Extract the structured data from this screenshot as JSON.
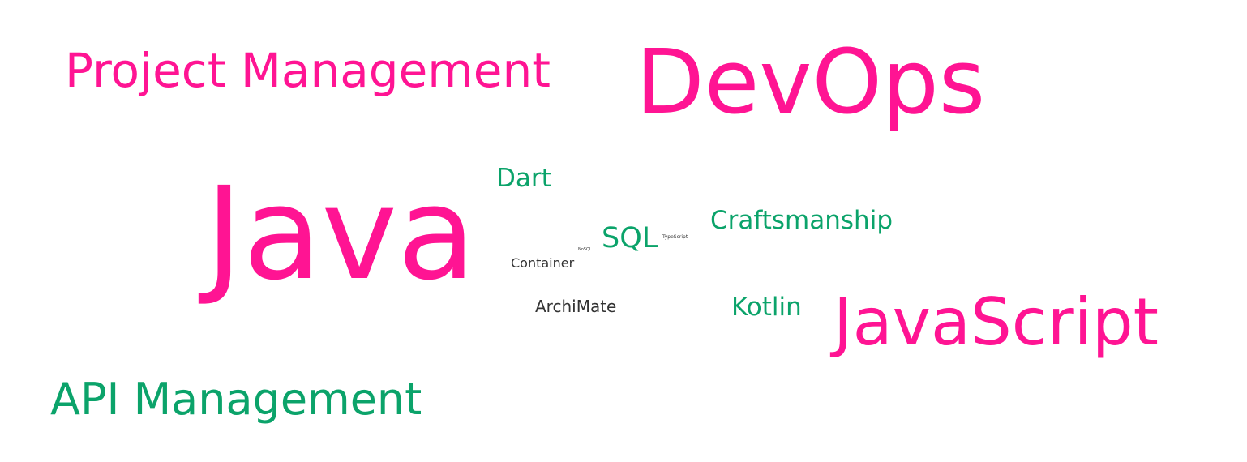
{
  "colors": {
    "high": "#ff1493",
    "mid": "#0ba36a",
    "low": "#333333"
  },
  "words": [
    {
      "id": "project",
      "text": "Project Management",
      "level": "high"
    },
    {
      "id": "devops",
      "text": "DevOps",
      "level": "high"
    },
    {
      "id": "java",
      "text": "Java",
      "level": "high"
    },
    {
      "id": "dart",
      "text": "Dart",
      "level": "mid"
    },
    {
      "id": "craft",
      "text": "Craftsmanship",
      "level": "mid"
    },
    {
      "id": "sql",
      "text": "SQL",
      "level": "mid"
    },
    {
      "id": "typescript",
      "text": "TypeScript",
      "level": "low"
    },
    {
      "id": "nosql",
      "text": "NoSQL",
      "level": "low"
    },
    {
      "id": "container",
      "text": "Container",
      "level": "low"
    },
    {
      "id": "archimate",
      "text": "ArchiMate",
      "level": "low"
    },
    {
      "id": "kotlin",
      "text": "Kotlin",
      "level": "mid"
    },
    {
      "id": "javascript",
      "text": "JavaScript",
      "level": "high"
    },
    {
      "id": "api",
      "text": "API Management",
      "level": "mid"
    }
  ]
}
